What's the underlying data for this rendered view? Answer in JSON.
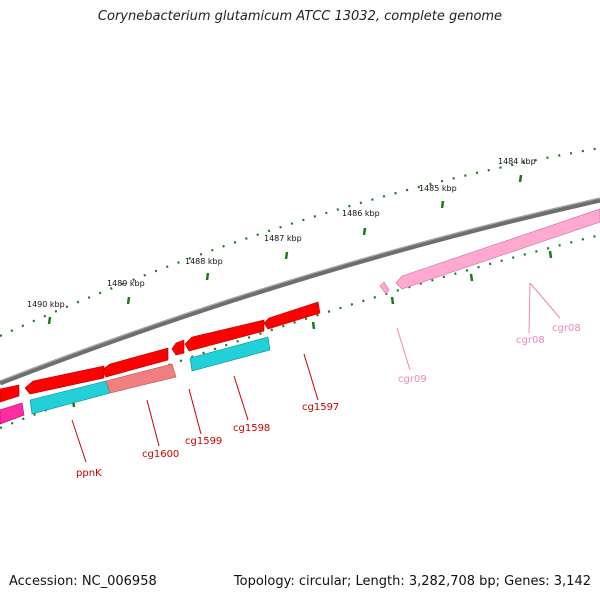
{
  "header": {
    "title": "Corynebacterium glutamicum ATCC 13032, complete genome"
  },
  "footer": {
    "accession": "Accession: NC_006958",
    "summary": "Topology: circular; Length: 3,282,708 bp; Genes: 3,142"
  },
  "scale": {
    "ticks": [
      "1490 kbp",
      "1489 kbp",
      "1488 kbp",
      "1487 kbp",
      "1486 kbp",
      "1485 kbp",
      "1484 kbp"
    ]
  },
  "genes": [
    {
      "label": "ppnK",
      "color": "#cc0000"
    },
    {
      "label": "cg1600",
      "color": "#cc0000"
    },
    {
      "label": "cg1599",
      "color": "#cc0000"
    },
    {
      "label": "cg1598",
      "color": "#cc0000"
    },
    {
      "label": "cg1597",
      "color": "#cc0000"
    },
    {
      "label": "cgr09",
      "color": "#ee88bb"
    },
    {
      "label": "cgr08",
      "color": "#ee88bb"
    },
    {
      "label": "cgr08",
      "color": "#ee88bb"
    }
  ],
  "colors": {
    "cds": "#ff0000",
    "cds_light": "#f08080",
    "rrna": "#ffa8d0",
    "gene_cyan": "#22d0d8",
    "magenta": "#ff2da0",
    "backbone": "#808080",
    "ticks": "#1a7a1a",
    "label_red": "#cc0000",
    "label_pink": "#ee88bb"
  }
}
